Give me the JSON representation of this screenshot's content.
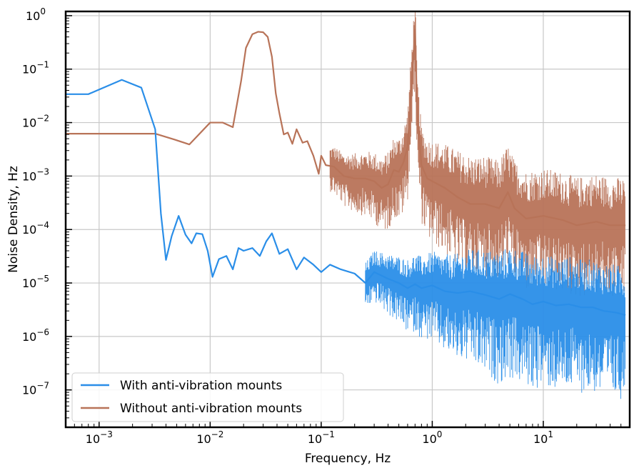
{
  "chart_data": {
    "type": "line",
    "xscale": "log",
    "yscale": "log",
    "xlabel": "Frequency, Hz",
    "ylabel": "Noise Density, Hz",
    "xlim": [
      0.0005,
      60
    ],
    "ylim": [
      2e-08,
      1.2
    ],
    "grid": true,
    "legend_position": "bottom-left",
    "x_ticks": [
      {
        "base": "10",
        "exp": "−3",
        "value": 0.001
      },
      {
        "base": "10",
        "exp": "−2",
        "value": 0.01
      },
      {
        "base": "10",
        "exp": "−1",
        "value": 0.1
      },
      {
        "base": "10",
        "exp": "0",
        "value": 1
      },
      {
        "base": "10",
        "exp": "1",
        "value": 10
      }
    ],
    "y_ticks": [
      {
        "base": "10",
        "exp": "0",
        "value": 1
      },
      {
        "base": "10",
        "exp": "−1",
        "value": 0.1
      },
      {
        "base": "10",
        "exp": "−2",
        "value": 0.01
      },
      {
        "base": "10",
        "exp": "−3",
        "value": 0.001
      },
      {
        "base": "10",
        "exp": "−4",
        "value": 0.0001
      },
      {
        "base": "10",
        "exp": "−5",
        "value": 1e-05
      },
      {
        "base": "10",
        "exp": "−6",
        "value": 1e-06
      },
      {
        "base": "10",
        "exp": "−7",
        "value": 1e-07
      }
    ],
    "series": [
      {
        "name": "With anti-vibration mounts",
        "color": "#2a8ee8",
        "x": [
          0.0005,
          0.0008,
          0.0016,
          0.0024,
          0.0032,
          0.0036,
          0.004,
          0.0045,
          0.0052,
          0.006,
          0.0068,
          0.0075,
          0.0085,
          0.0095,
          0.0105,
          0.012,
          0.014,
          0.016,
          0.018,
          0.02,
          0.024,
          0.028,
          0.032,
          0.036,
          0.042,
          0.05,
          0.06,
          0.07,
          0.085,
          0.1,
          0.12,
          0.15,
          0.2,
          0.25,
          0.3,
          0.4,
          0.5,
          0.6,
          0.7,
          0.8,
          1.0,
          1.3,
          1.7,
          2.2,
          3.0,
          4.0,
          5.0,
          6.5,
          8.0,
          10,
          13,
          17,
          22,
          28,
          35,
          45,
          55
        ],
        "y": [
          0.034,
          0.034,
          0.063,
          0.045,
          0.0075,
          0.0002,
          2.7e-05,
          7.5e-05,
          0.00018,
          8e-05,
          5.5e-05,
          8.5e-05,
          8.2e-05,
          4e-05,
          1.3e-05,
          2.8e-05,
          3.2e-05,
          1.8e-05,
          4.5e-05,
          4e-05,
          4.5e-05,
          3.2e-05,
          6e-05,
          8.5e-05,
          3.5e-05,
          4.3e-05,
          1.8e-05,
          3e-05,
          2.2e-05,
          1.6e-05,
          2.2e-05,
          1.8e-05,
          1.5e-05,
          1e-05,
          1.6e-05,
          1.2e-05,
          1e-05,
          8e-06,
          9.5e-06,
          8e-06,
          9e-06,
          7e-06,
          6.5e-06,
          7e-06,
          6e-06,
          5e-06,
          6.2e-06,
          5e-06,
          4e-06,
          4.5e-06,
          3.8e-06,
          4e-06,
          3.5e-06,
          3.5e-06,
          3e-06,
          2.8e-06,
          2.5e-06
        ]
      },
      {
        "name": "Without anti-vibration mounts",
        "color": "#b87358",
        "x": [
          0.0005,
          0.0016,
          0.0032,
          0.0048,
          0.0065,
          0.01,
          0.013,
          0.016,
          0.019,
          0.021,
          0.024,
          0.027,
          0.03,
          0.033,
          0.036,
          0.039,
          0.042,
          0.046,
          0.05,
          0.055,
          0.06,
          0.068,
          0.075,
          0.085,
          0.095,
          0.1,
          0.11,
          0.13,
          0.16,
          0.2,
          0.25,
          0.3,
          0.35,
          0.4,
          0.45,
          0.5,
          0.55,
          0.6,
          0.64,
          0.67,
          0.7,
          0.73,
          0.8,
          0.9,
          1.0,
          1.3,
          1.7,
          2.2,
          3.0,
          4.0,
          4.8,
          5.5,
          7.0,
          10,
          15,
          20,
          30,
          40,
          55
        ],
        "y": [
          0.0062,
          0.0062,
          0.0062,
          0.0048,
          0.0039,
          0.01,
          0.01,
          0.0082,
          0.06,
          0.25,
          0.45,
          0.5,
          0.49,
          0.4,
          0.17,
          0.035,
          0.015,
          0.006,
          0.0065,
          0.004,
          0.0075,
          0.0042,
          0.0045,
          0.0024,
          0.0011,
          0.0024,
          0.0016,
          0.0015,
          0.001,
          0.0009,
          0.0009,
          0.0008,
          0.0006,
          0.0007,
          0.0013,
          0.0012,
          0.0018,
          0.0035,
          0.03,
          0.12,
          0.55,
          0.016,
          0.0016,
          0.0009,
          0.0008,
          0.0006,
          0.0004,
          0.0003,
          0.0003,
          0.00025,
          0.0005,
          0.00025,
          0.00016,
          0.00018,
          0.00015,
          0.00012,
          0.00014,
          0.00012,
          0.00012
        ]
      }
    ]
  }
}
